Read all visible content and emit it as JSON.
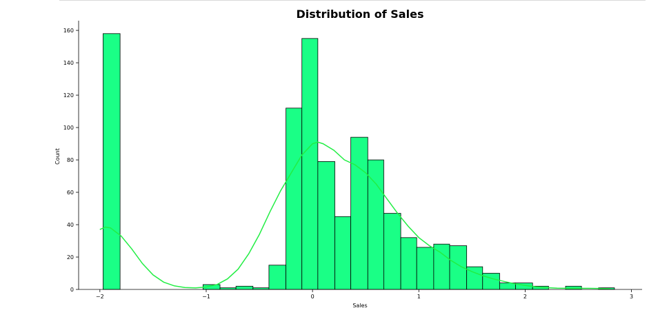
{
  "chart_data": {
    "type": "bar",
    "title": "Distribution of Sales",
    "xlabel": "Sales",
    "ylabel": "Count",
    "xlim": [
      -2.2,
      3.1
    ],
    "ylim": [
      0,
      166
    ],
    "xticks": [
      -2,
      -1,
      0,
      1,
      2,
      3
    ],
    "xtick_labels": [
      "−2",
      "−1",
      "0",
      "1",
      "2",
      "3"
    ],
    "yticks": [
      0,
      20,
      40,
      60,
      80,
      100,
      120,
      140,
      160
    ],
    "ytick_labels": [
      "0",
      "20",
      "40",
      "60",
      "80",
      "100",
      "120",
      "140",
      "160"
    ],
    "grid": false,
    "bar_color": "#1aff86",
    "edge_color": "#000000",
    "kde_color": "#22ee44",
    "bins": [
      {
        "x0": -1.97,
        "x1": -1.81,
        "count": 158
      },
      {
        "x0": -1.03,
        "x1": -0.87,
        "count": 3
      },
      {
        "x0": -0.87,
        "x1": -0.72,
        "count": 1
      },
      {
        "x0": -0.72,
        "x1": -0.56,
        "count": 2
      },
      {
        "x0": -0.56,
        "x1": -0.41,
        "count": 1
      },
      {
        "x0": -0.41,
        "x1": -0.25,
        "count": 15
      },
      {
        "x0": -0.25,
        "x1": -0.1,
        "count": 112
      },
      {
        "x0": -0.1,
        "x1": 0.05,
        "count": 155
      },
      {
        "x0": 0.05,
        "x1": 0.21,
        "count": 79
      },
      {
        "x0": 0.21,
        "x1": 0.36,
        "count": 45
      },
      {
        "x0": 0.36,
        "x1": 0.52,
        "count": 94
      },
      {
        "x0": 0.52,
        "x1": 0.67,
        "count": 80
      },
      {
        "x0": 0.67,
        "x1": 0.83,
        "count": 47
      },
      {
        "x0": 0.83,
        "x1": 0.98,
        "count": 32
      },
      {
        "x0": 0.98,
        "x1": 1.14,
        "count": 26
      },
      {
        "x0": 1.14,
        "x1": 1.29,
        "count": 28
      },
      {
        "x0": 1.29,
        "x1": 1.45,
        "count": 27
      },
      {
        "x0": 1.45,
        "x1": 1.6,
        "count": 14
      },
      {
        "x0": 1.6,
        "x1": 1.76,
        "count": 10
      },
      {
        "x0": 1.76,
        "x1": 1.91,
        "count": 4
      },
      {
        "x0": 1.91,
        "x1": 2.07,
        "count": 4
      },
      {
        "x0": 2.07,
        "x1": 2.22,
        "count": 2
      },
      {
        "x0": 2.38,
        "x1": 2.53,
        "count": 2
      },
      {
        "x0": 2.69,
        "x1": 2.84,
        "count": 1
      }
    ],
    "kde": [
      [
        -2.0,
        37
      ],
      [
        -1.95,
        38.5
      ],
      [
        -1.9,
        38
      ],
      [
        -1.8,
        33
      ],
      [
        -1.7,
        25
      ],
      [
        -1.6,
        16
      ],
      [
        -1.5,
        9
      ],
      [
        -1.4,
        4.5
      ],
      [
        -1.3,
        2.2
      ],
      [
        -1.2,
        1.2
      ],
      [
        -1.1,
        1
      ],
      [
        -1.0,
        1.5
      ],
      [
        -0.9,
        3
      ],
      [
        -0.8,
        6.5
      ],
      [
        -0.7,
        12.5
      ],
      [
        -0.6,
        22
      ],
      [
        -0.5,
        34
      ],
      [
        -0.4,
        48
      ],
      [
        -0.3,
        61
      ],
      [
        -0.2,
        72
      ],
      [
        -0.1,
        83
      ],
      [
        0.0,
        90
      ],
      [
        0.05,
        91
      ],
      [
        0.1,
        90
      ],
      [
        0.2,
        86
      ],
      [
        0.3,
        80
      ],
      [
        0.4,
        77
      ],
      [
        0.5,
        72
      ],
      [
        0.6,
        65
      ],
      [
        0.7,
        56
      ],
      [
        0.8,
        47
      ],
      [
        0.9,
        39
      ],
      [
        1.0,
        32
      ],
      [
        1.1,
        27
      ],
      [
        1.2,
        23
      ],
      [
        1.3,
        18
      ],
      [
        1.4,
        14
      ],
      [
        1.5,
        11
      ],
      [
        1.6,
        8.5
      ],
      [
        1.7,
        6.5
      ],
      [
        1.8,
        5
      ],
      [
        1.9,
        3.5
      ],
      [
        2.0,
        2.5
      ],
      [
        2.1,
        1.6
      ],
      [
        2.2,
        1.1
      ],
      [
        2.3,
        0.8
      ],
      [
        2.4,
        0.7
      ],
      [
        2.5,
        0.7
      ],
      [
        2.6,
        0.7
      ],
      [
        2.7,
        0.6
      ],
      [
        2.8,
        0.4
      ]
    ]
  }
}
